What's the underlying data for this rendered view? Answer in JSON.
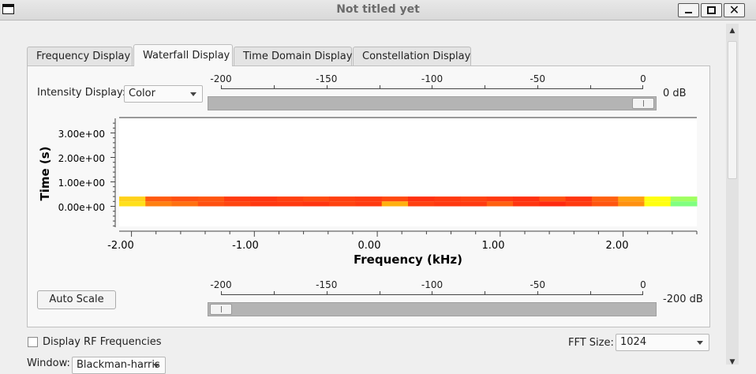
{
  "window": {
    "title": "Not titled yet"
  },
  "tabs": [
    {
      "label": "Frequency Display"
    },
    {
      "label": "Waterfall Display"
    },
    {
      "label": "Time Domain Display"
    },
    {
      "label": "Constellation Display"
    }
  ],
  "active_tab": "Waterfall Display",
  "intensity": {
    "label": "Intensity Display:",
    "value": "Color"
  },
  "top_slider": {
    "tick_labels": [
      "-200",
      "-150",
      "-100",
      "-50",
      "0"
    ],
    "value_label": "0 dB",
    "value_db": 0,
    "range_db": [
      -200,
      0
    ]
  },
  "bottom_slider": {
    "tick_labels": [
      "-200",
      "-150",
      "-100",
      "-50",
      "0"
    ],
    "value_label": "-200 dB",
    "value_db": -200,
    "range_db": [
      -200,
      0
    ]
  },
  "auto_scale_label": "Auto Scale",
  "plot": {
    "ylabel": "Time (s)",
    "xlabel": "Frequency (kHz)",
    "y_tick_labels": [
      "3.00e+00",
      "2.00e+00",
      "1.00e+00",
      "0.00e+00"
    ],
    "x_tick_labels": [
      "-2.00",
      "-1.00",
      "0.00",
      "1.00",
      "2.00"
    ]
  },
  "chart_data": {
    "type": "heatmap",
    "xlabel": "Frequency (kHz)",
    "ylabel": "Time (s)",
    "xlim": [
      -2.1,
      2.6
    ],
    "ylim": [
      -0.8,
      3.6
    ],
    "x_ticks": [
      -2.0,
      -1.0,
      0.0,
      1.0,
      2.0
    ],
    "y_ticks": [
      0.0,
      1.0,
      2.0,
      3.0
    ],
    "rows": [
      {
        "time_s": 0.3,
        "colors": [
          "#ffd21a",
          "#ff5a10",
          "#ff4f10",
          "#ff5510",
          "#ff3a10",
          "#ff3510",
          "#ff4010",
          "#ff4a10",
          "#ff3f10",
          "#ff3a10",
          "#ff4810",
          "#ff3010",
          "#ff3810",
          "#ff4010",
          "#ff3810",
          "#ff3010",
          "#ff5010",
          "#ff3510",
          "#ff6010",
          "#ffa010",
          "#ffff10",
          "#a0ff60"
        ]
      },
      {
        "time_s": 0.1,
        "colors": [
          "#ffe01a",
          "#ff8010",
          "#ff7010",
          "#ff5010",
          "#ff4510",
          "#ff3810",
          "#ff3a10",
          "#ff3510",
          "#ff4210",
          "#ff3a10",
          "#ffb010",
          "#ff4010",
          "#ff3810",
          "#ff3a10",
          "#ff6010",
          "#ff3510",
          "#ff2a10",
          "#ff3a10",
          "#ff5510",
          "#ff9010",
          "#ffff10",
          "#80ff80"
        ]
      }
    ]
  },
  "rf_checkbox": {
    "label": "Display RF Frequencies",
    "checked": false
  },
  "fft": {
    "label": "FFT Size:",
    "value": "1024"
  },
  "window_fn": {
    "label": "Window:",
    "value": "Blackman-harris"
  }
}
